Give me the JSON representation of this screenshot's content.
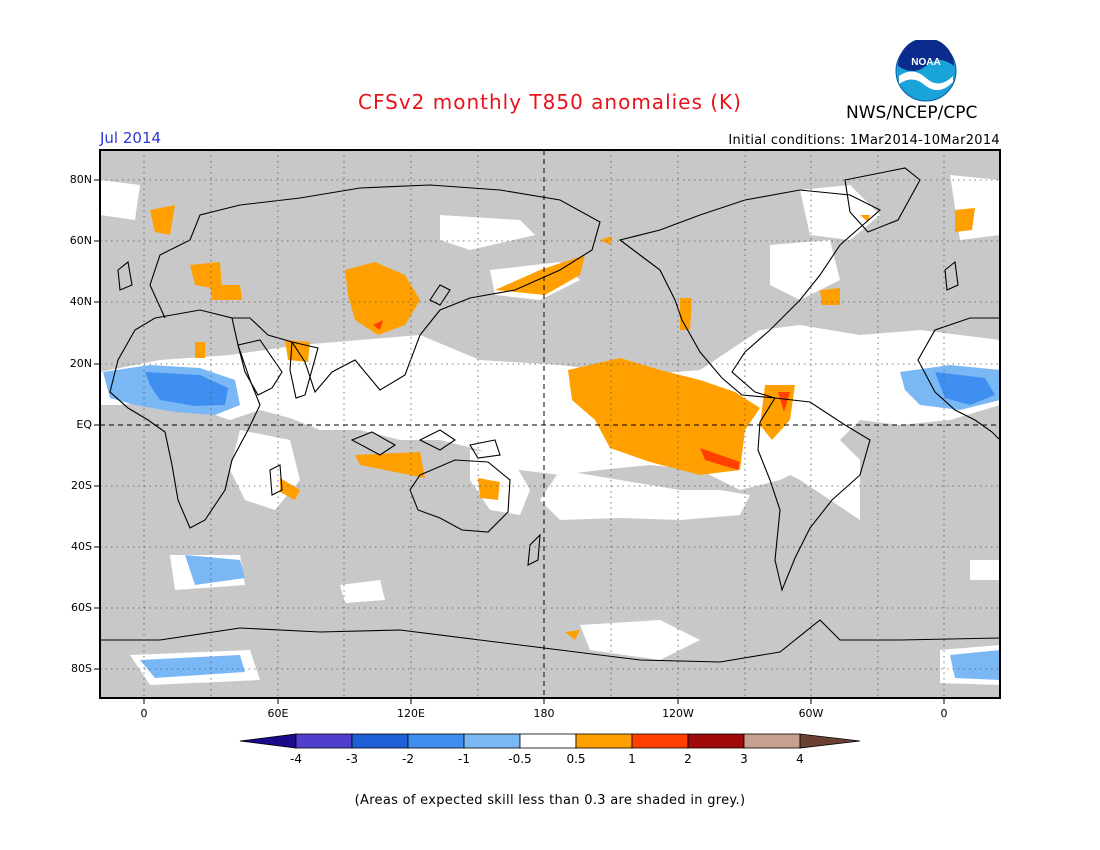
{
  "header": {
    "title": "CFSv2 monthly T850 anomalies (K)",
    "organization": "NWS/NCEP/CPC",
    "month": "Jul 2014",
    "initial_conditions": "Initial conditions: 1Mar2014-10Mar2014",
    "logo_text": "NOAA"
  },
  "map": {
    "projection": "cylindrical equidistant",
    "lat_labels": [
      "80N",
      "60N",
      "40N",
      "20N",
      "EQ",
      "20S",
      "40S",
      "60S",
      "80S"
    ],
    "lon_labels": [
      "0",
      "60E",
      "120E",
      "180",
      "120W",
      "60W",
      "0"
    ],
    "land_color": "#c8c8c8",
    "ocean_color": "#ffffff"
  },
  "colorbar": {
    "labels": [
      "-4",
      "-3",
      "-2",
      "-1",
      "-0.5",
      "0.5",
      "1",
      "2",
      "3",
      "4"
    ],
    "colors": [
      "#1a0a8c",
      "#4f3fcc",
      "#1f5fd8",
      "#3f8ff0",
      "#7ab8f5",
      "#ffffff",
      "#ffa000",
      "#ff4000",
      "#a00a0a",
      "#c8a090",
      "#6b4030"
    ]
  },
  "footnote": "(Areas of expected skill less than 0.3 are shaded in grey.)"
}
